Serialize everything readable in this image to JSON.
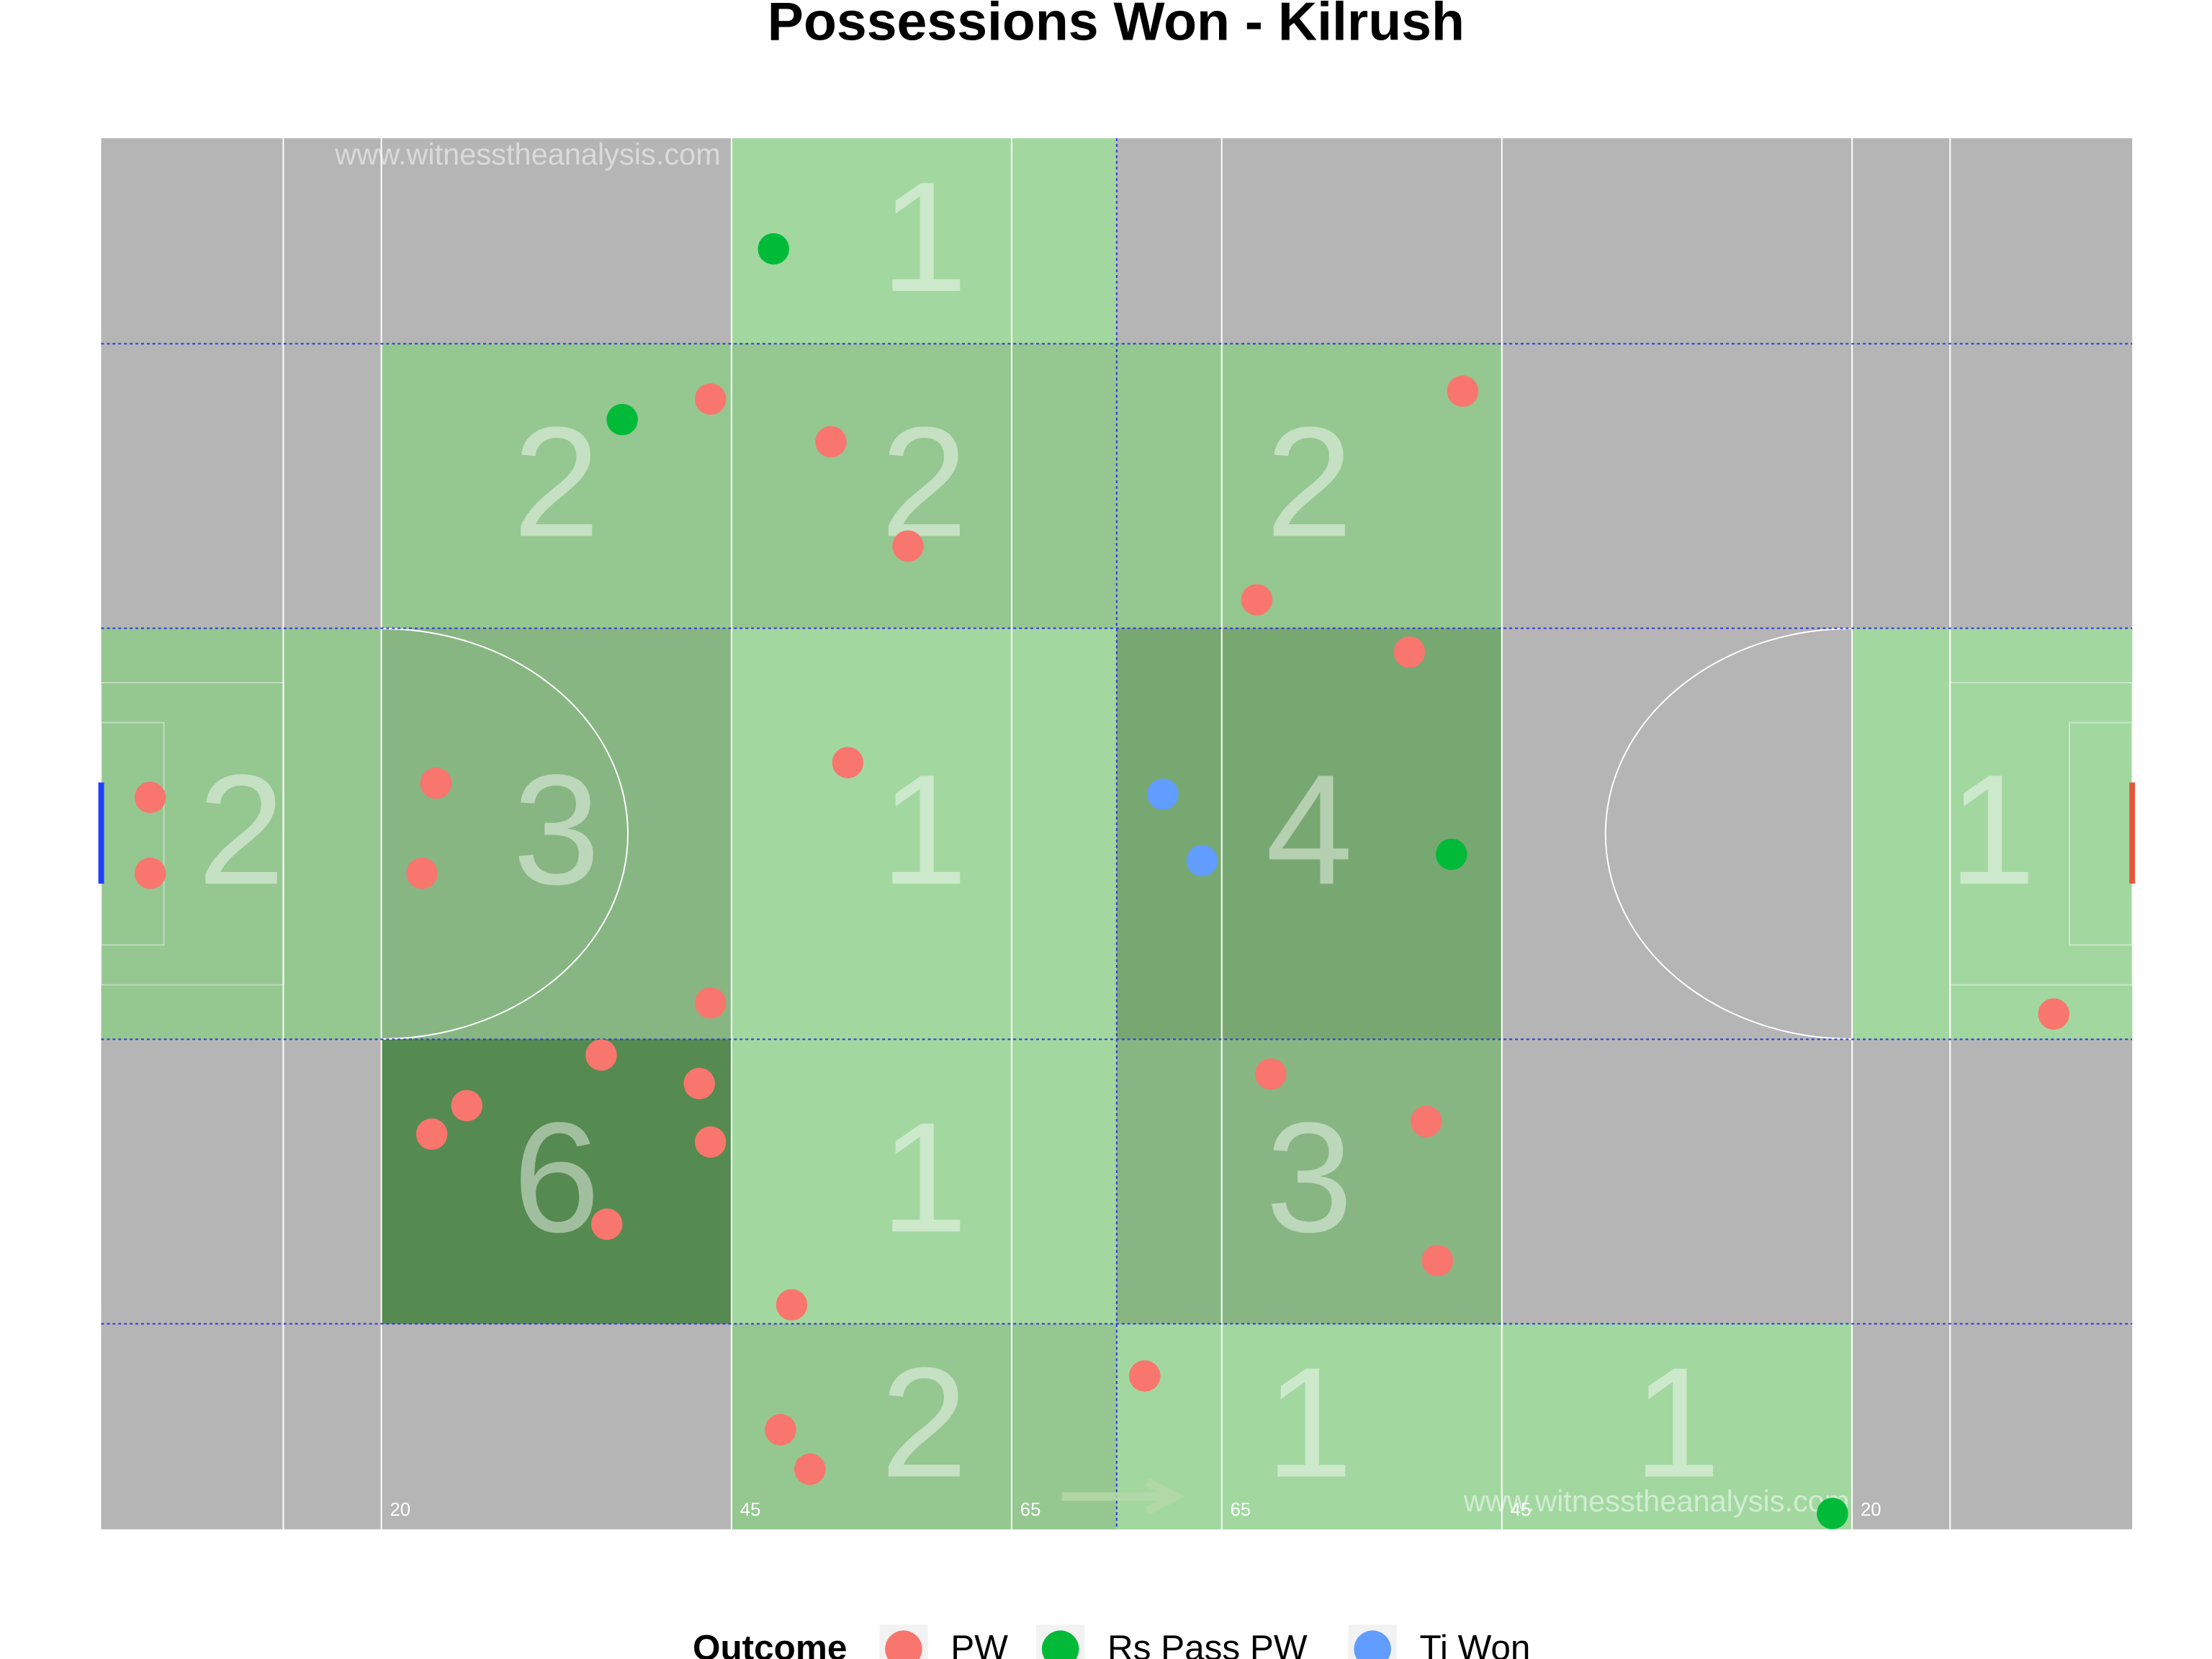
{
  "chart_data": {
    "type": "pitch",
    "title": "Possessions Won - Kilrush",
    "watermark": "www.witnesstheanalysis.com",
    "xlim": [
      0,
      145
    ],
    "ylim": [
      0,
      88
    ],
    "xticks": [
      20,
      45,
      65,
      {
        "value": 80,
        "label": "65"
      },
      {
        "value": 100,
        "label": "45"
      },
      {
        "value": 125,
        "label": "20"
      }
    ],
    "zones": [
      {
        "x": [
          45,
          72.5
        ],
        "y": [
          75,
          88
        ],
        "value": 1,
        "color": "#a2d8a0"
      },
      {
        "x": [
          20,
          45
        ],
        "y": [
          57,
          75
        ],
        "value": 2,
        "color": "#95c790"
      },
      {
        "x": [
          45,
          72.5
        ],
        "y": [
          57,
          75
        ],
        "value": 2,
        "color": "#95c790"
      },
      {
        "x": [
          72.5,
          100
        ],
        "y": [
          57,
          75
        ],
        "value": 2,
        "color": "#95c790"
      },
      {
        "x": [
          0,
          20
        ],
        "y": [
          31,
          57
        ],
        "value": 2,
        "color": "#95c790"
      },
      {
        "x": [
          20,
          45
        ],
        "y": [
          31,
          57
        ],
        "value": 3,
        "color": "#87b683"
      },
      {
        "x": [
          45,
          72.5
        ],
        "y": [
          31,
          57
        ],
        "value": 1,
        "color": "#a2d8a0"
      },
      {
        "x": [
          72.5,
          100
        ],
        "y": [
          31,
          57
        ],
        "value": 4,
        "color": "#78a872"
      },
      {
        "x": [
          125,
          145
        ],
        "y": [
          31,
          57
        ],
        "value": 1,
        "color": "#a2d8a0"
      },
      {
        "x": [
          20,
          45
        ],
        "y": [
          13,
          31
        ],
        "value": 6,
        "color": "#558b51"
      },
      {
        "x": [
          45,
          72.5
        ],
        "y": [
          13,
          31
        ],
        "value": 1,
        "color": "#a2d8a0"
      },
      {
        "x": [
          72.5,
          100
        ],
        "y": [
          13,
          31
        ],
        "value": 3,
        "color": "#87b683"
      },
      {
        "x": [
          45,
          72.5
        ],
        "y": [
          0,
          13
        ],
        "value": 2,
        "color": "#95c790"
      },
      {
        "x": [
          72.5,
          100
        ],
        "y": [
          0,
          13
        ],
        "value": 1,
        "color": "#a2d8a0"
      },
      {
        "x": [
          100,
          125
        ],
        "y": [
          0,
          13
        ],
        "value": 1,
        "color": "#a2d8a0"
      }
    ],
    "legend_title": "Outcome",
    "series": [
      {
        "name": "PW",
        "color": "#f8766d",
        "x": [
          43.5,
          52.1,
          57.6,
          82.5,
          97.2,
          93.4,
          53.3,
          23.9,
          3.5,
          3.5,
          22.9,
          43.5,
          35.7,
          42.7,
          26.1,
          23.6,
          43.5,
          36.1,
          83.5,
          94.6,
          95.4,
          49.3,
          74.5,
          48.5,
          50.6,
          139.4
        ],
        "y": [
          71.5,
          68.8,
          62.2,
          58.8,
          72.0,
          55.5,
          48.5,
          47.2,
          46.3,
          41.5,
          41.5,
          33.3,
          30.0,
          28.2,
          26.8,
          25.0,
          24.5,
          19.3,
          28.8,
          25.8,
          17.0,
          14.2,
          9.7,
          6.3,
          3.8,
          32.6
        ]
      },
      {
        "name": "Rs Pass PW",
        "color": "#00ba38",
        "x": [
          48.0,
          37.2,
          96.4,
          123.6
        ],
        "y": [
          81.0,
          70.2,
          42.7,
          1.0
        ]
      },
      {
        "name": "Ti Won",
        "color": "#619cff",
        "x": [
          75.8,
          78.6
        ],
        "y": [
          46.5,
          42.3
        ]
      }
    ]
  }
}
